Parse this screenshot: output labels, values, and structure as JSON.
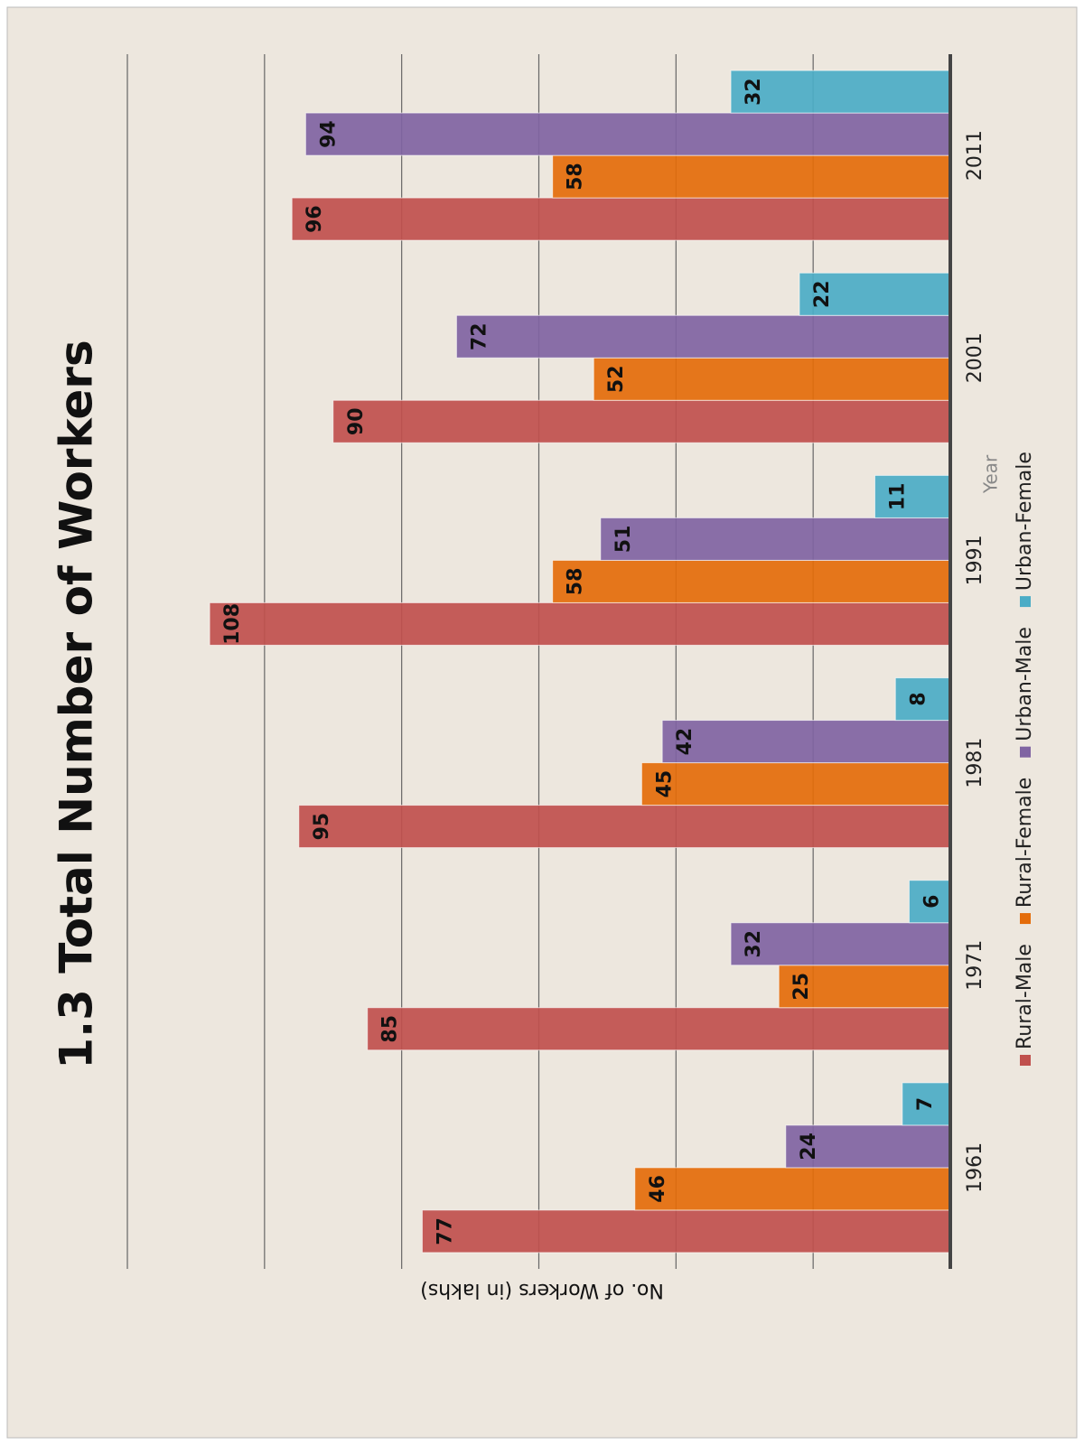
{
  "chart_data": {
    "type": "bar",
    "title": "1.3 Total Number of Workers",
    "x_label": "Year",
    "y_label": "No. of Workers (in lakhs)",
    "categories": [
      "1961",
      "1971",
      "1981",
      "1991",
      "2001",
      "2011"
    ],
    "series": [
      {
        "name": "Rural-Male",
        "color": "#c0504d",
        "values": [
          77,
          85,
          95,
          108,
          90,
          96
        ]
      },
      {
        "name": "Rural-Female",
        "color": "#e46c0a",
        "values": [
          46,
          25,
          45,
          58,
          52,
          58
        ]
      },
      {
        "name": "Urban-Male",
        "color": "#8064a2",
        "values": [
          24,
          32,
          42,
          51,
          72,
          94
        ]
      },
      {
        "name": "Urban-Female",
        "color": "#4bacc6",
        "values": [
          7,
          6,
          8,
          11,
          22,
          32
        ]
      }
    ],
    "ylim": [
      0,
      120
    ],
    "yticks": [
      0,
      20,
      40,
      60,
      80,
      100,
      120
    ],
    "grid": true,
    "legend": "bottom"
  }
}
